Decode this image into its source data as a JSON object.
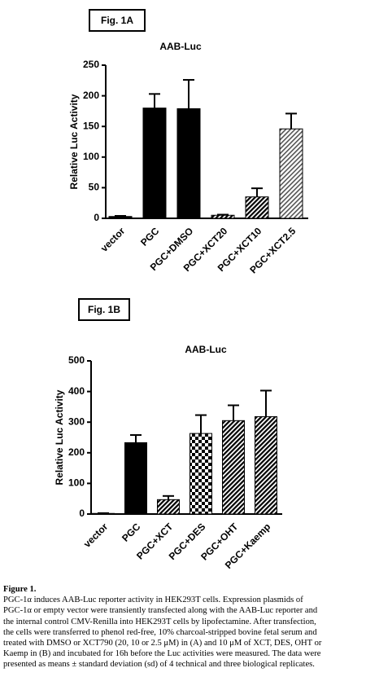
{
  "chart_data": [
    {
      "type": "bar",
      "panel_label": "Fig. 1A",
      "title": "AAB-Luc",
      "ylabel": "Relative Luc Activity",
      "categories": [
        "vector",
        "PGC",
        "PGC+DMSO",
        "PGC+XCT20",
        "PGC+XCT10",
        "PGC+XCT2.5"
      ],
      "values": [
        3,
        180,
        179,
        5,
        35,
        146
      ],
      "errors": [
        1,
        23,
        47,
        1,
        14,
        25
      ],
      "fills": [
        "#000000",
        "#000000",
        "#000000",
        "hatch",
        "hatch",
        "hatch-light"
      ],
      "ylim": [
        0,
        250
      ],
      "yticks": [
        0,
        50,
        100,
        150,
        200,
        250
      ]
    },
    {
      "type": "bar",
      "panel_label": "Fig. 1B",
      "title": "AAB-Luc",
      "ylabel": "Relative Luc Activity",
      "categories": [
        "vector",
        "PGC",
        "PGC+XCT",
        "PGC+DES",
        "PGC+OHT",
        "PGC+Kaemp"
      ],
      "values": [
        2,
        233,
        47,
        263,
        305,
        318
      ],
      "errors": [
        1,
        25,
        12,
        60,
        50,
        85
      ],
      "fills": [
        "#000000",
        "#000000",
        "hatch",
        "checker",
        "hatch",
        "hatch"
      ],
      "ylim": [
        0,
        500
      ],
      "yticks": [
        0,
        100,
        200,
        300,
        400,
        500
      ]
    }
  ],
  "caption": {
    "title": "Figure 1.",
    "lines": [
      "PGC-1α induces AAB-Luc reporter activity in HEK293T cells. Expression plasmids of",
      "PGC-1α or empty vector were transiently transfected along with the AAB-Luc reporter and",
      "the internal control CMV-Renilla into HEK293T cells by lipofectamine. After transfection,",
      "the cells were transferred to phenol red-free, 10% charcoal-stripped bovine fetal serum and",
      "treated with DMSO or XCT790 (20, 10 or 2.5 μM) in (A) and 10 μM of XCT, DES, OHT or",
      "Kaemp in (B) and incubated for 16h before the Luc activities were measured. The data were",
      "presented as means ± standard deviation (sd) of 4 technical and three biological replicates."
    ]
  }
}
